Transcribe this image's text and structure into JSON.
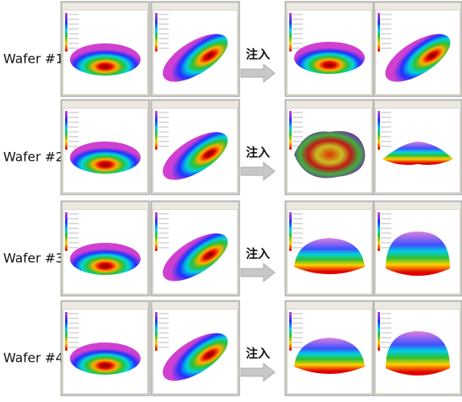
{
  "rows": [
    {
      "label": "Wafer #1",
      "action": "注入"
    },
    {
      "label": "Wafer #2",
      "action": "注入"
    },
    {
      "label": "Wafer #3",
      "action": "注入"
    },
    {
      "label": "Wafer #4",
      "action": "注入"
    }
  ]
}
